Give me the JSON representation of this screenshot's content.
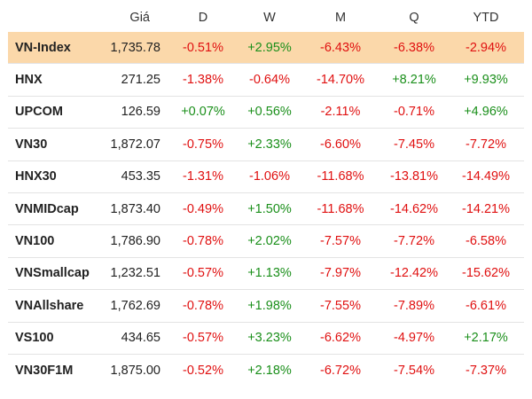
{
  "header": {
    "name": "",
    "price": "Giá",
    "d": "D",
    "w": "W",
    "m": "M",
    "q": "Q",
    "ytd": "YTD"
  },
  "colors": {
    "highlight": "#fbd8aa",
    "negative": "#e01010",
    "positive": "#1a8f1a"
  },
  "rows": [
    {
      "name": "VN-Index",
      "price": "1,735.78",
      "d": "-0.51%",
      "w": "+2.95%",
      "m": "-6.43%",
      "q": "-6.38%",
      "ytd": "-2.94%"
    },
    {
      "name": "HNX",
      "price": "271.25",
      "d": "-1.38%",
      "w": "-0.64%",
      "m": "-14.70%",
      "q": "+8.21%",
      "ytd": "+9.93%"
    },
    {
      "name": "UPCOM",
      "price": "126.59",
      "d": "+0.07%",
      "w": "+0.56%",
      "m": "-2.11%",
      "q": "-0.71%",
      "ytd": "+4.96%"
    },
    {
      "name": "VN30",
      "price": "1,872.07",
      "d": "-0.75%",
      "w": "+2.33%",
      "m": "-6.60%",
      "q": "-7.45%",
      "ytd": "-7.72%"
    },
    {
      "name": "HNX30",
      "price": "453.35",
      "d": "-1.31%",
      "w": "-1.06%",
      "m": "-11.68%",
      "q": "-13.81%",
      "ytd": "-14.49%"
    },
    {
      "name": "VNMIDcap",
      "price": "1,873.40",
      "d": "-0.49%",
      "w": "+1.50%",
      "m": "-11.68%",
      "q": "-14.62%",
      "ytd": "-14.21%"
    },
    {
      "name": "VN100",
      "price": "1,786.90",
      "d": "-0.78%",
      "w": "+2.02%",
      "m": "-7.57%",
      "q": "-7.72%",
      "ytd": "-6.58%"
    },
    {
      "name": "VNSmallcap",
      "price": "1,232.51",
      "d": "-0.57%",
      "w": "+1.13%",
      "m": "-7.97%",
      "q": "-12.42%",
      "ytd": "-15.62%"
    },
    {
      "name": "VNAllshare",
      "price": "1,762.69",
      "d": "-0.78%",
      "w": "+1.98%",
      "m": "-7.55%",
      "q": "-7.89%",
      "ytd": "-6.61%"
    },
    {
      "name": "VS100",
      "price": "434.65",
      "d": "-0.57%",
      "w": "+3.23%",
      "m": "-6.62%",
      "q": "-4.97%",
      "ytd": "+2.17%"
    },
    {
      "name": "VN30F1M",
      "price": "1,875.00",
      "d": "-0.52%",
      "w": "+2.18%",
      "m": "-6.72%",
      "q": "-7.54%",
      "ytd": "-7.37%"
    }
  ]
}
